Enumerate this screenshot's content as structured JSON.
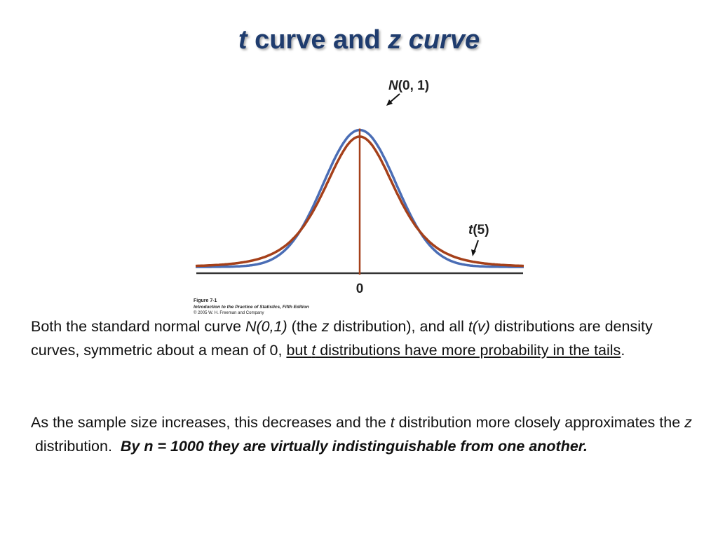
{
  "title": {
    "part1": "t",
    "part2": " curve and ",
    "part3": "z curve"
  },
  "chart_data": {
    "type": "line",
    "x_range": [
      -4.5,
      4.5
    ],
    "x_ticks": [
      {
        "value": 0,
        "label": "0"
      }
    ],
    "grid": false,
    "series": [
      {
        "name": "N(0, 1)",
        "name_italic": "N",
        "name_rest": "(0, 1)",
        "distribution": "normal",
        "mean": 0,
        "sd": 1,
        "color": "#4a6db5"
      },
      {
        "name": "t(5)",
        "name_italic": "t",
        "name_rest": "(5)",
        "distribution": "student_t",
        "df": 5,
        "color": "#a5401a"
      }
    ],
    "vertical_line": {
      "x": 0,
      "color": "#a5401a"
    },
    "caption": {
      "line1": "Figure 7-1",
      "line2": "Introduction to the Practice of Statistics, Fifth Edition",
      "line3": "© 2005 W. H. Freeman and Company"
    }
  },
  "paragraph1": {
    "s1": "Both the standard normal curve ",
    "s2": "N(0,1)",
    "s3": " (the ",
    "s4": "z",
    "s5": " distribution), and all ",
    "s6": "t(v)",
    "s7": " distributions are density curves, symmetric about a mean of 0, ",
    "s8": "but ",
    "s9": "t",
    "s10": " distributions have more probability in the tails",
    "s11": "."
  },
  "paragraph2": {
    "s1": "As the sample size increases, this decreases and the ",
    "s2": "t",
    "s3": " distribution more closely approximates the ",
    "s4": "z",
    "s5": " distribution.  ",
    "s6": "By n = 1000 they are virtually indistinguishable from one another."
  },
  "colors": {
    "title": "#1f3c6e",
    "normal": "#4a6db5",
    "t": "#a5401a",
    "axis": "#333333"
  }
}
